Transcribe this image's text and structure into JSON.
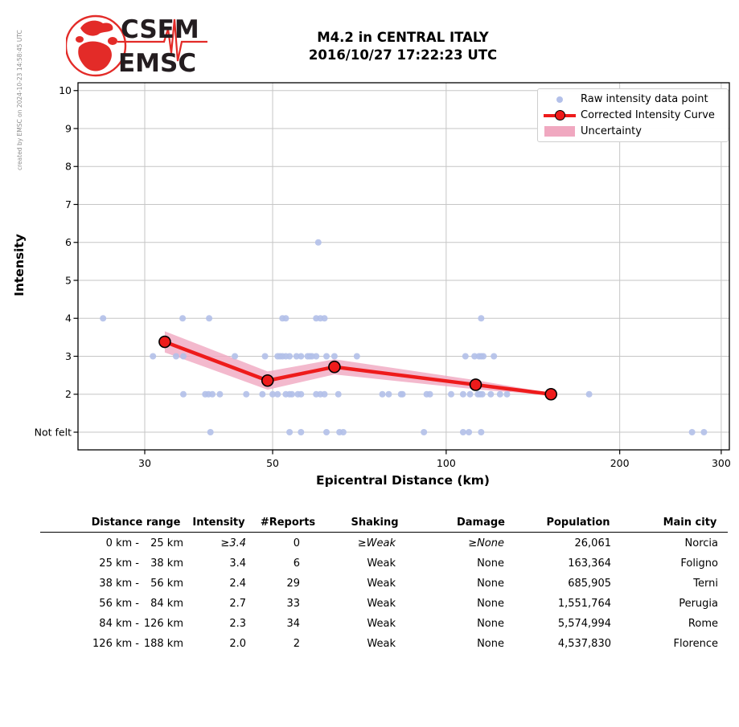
{
  "credit": "created by EMSC on 2024-10-23 14:58:45 UTC",
  "logo": {
    "line1": "CSEM",
    "line2": "EMSC"
  },
  "title": {
    "line1": "M4.2 in CENTRAL ITALY",
    "line2": "2016/10/27 17:22:23 UTC"
  },
  "chart_data": {
    "type": "scatter",
    "title": "M4.2 in CENTRAL ITALY",
    "subtitle": "2016/10/27 17:22:23 UTC",
    "xlabel": "Epicentral Distance (km)",
    "ylabel": "Intensity",
    "x_scale": "log",
    "x_ticks": [
      30,
      50,
      100,
      200,
      300
    ],
    "x_range": [
      23,
      310
    ],
    "y_tick_values": [
      1,
      2,
      3,
      4,
      5,
      6,
      7,
      8,
      9,
      10
    ],
    "y_tick_labels": [
      "Not felt",
      "2",
      "3",
      "4",
      "5",
      "6",
      "7",
      "8",
      "9",
      "10"
    ],
    "y_range": [
      0.53,
      10.21
    ],
    "grid": true,
    "legend_position": "upper right",
    "legend": [
      "Raw intensity data point",
      "Corrected Intensity Curve",
      "Uncertainty"
    ],
    "colors": {
      "raw": "#b3c0e9",
      "curve": "#ee1b1b",
      "band": "#f0a8c0",
      "grid": "#c6c6c6",
      "logo_red": "#e32b28",
      "logo_dark": "#241d20"
    },
    "raw_points": [
      [
        60,
        6
      ],
      [
        25.4,
        4
      ],
      [
        34.9,
        4
      ],
      [
        38.8,
        4
      ],
      [
        52,
        4
      ],
      [
        52.7,
        4
      ],
      [
        59.5,
        4
      ],
      [
        60.5,
        4
      ],
      [
        61.5,
        4
      ],
      [
        115,
        4
      ],
      [
        31,
        3
      ],
      [
        34,
        3
      ],
      [
        35,
        3
      ],
      [
        43,
        3
      ],
      [
        48.5,
        3
      ],
      [
        51,
        3
      ],
      [
        51.5,
        3
      ],
      [
        52,
        3
      ],
      [
        52.7,
        3
      ],
      [
        53.5,
        3
      ],
      [
        55,
        3
      ],
      [
        56,
        3
      ],
      [
        57.5,
        3
      ],
      [
        58,
        3
      ],
      [
        58.5,
        3
      ],
      [
        59.5,
        3
      ],
      [
        62,
        3
      ],
      [
        64,
        3
      ],
      [
        70,
        3
      ],
      [
        108,
        3
      ],
      [
        112,
        3
      ],
      [
        114,
        3
      ],
      [
        115,
        3
      ],
      [
        116,
        3
      ],
      [
        121,
        3
      ],
      [
        35,
        2
      ],
      [
        38.2,
        2
      ],
      [
        38.7,
        2
      ],
      [
        39.3,
        2
      ],
      [
        40.5,
        2
      ],
      [
        45,
        2
      ],
      [
        48,
        2
      ],
      [
        50,
        2
      ],
      [
        51,
        2
      ],
      [
        52.7,
        2
      ],
      [
        53.5,
        2
      ],
      [
        54,
        2
      ],
      [
        55.3,
        2
      ],
      [
        56,
        2
      ],
      [
        59.5,
        2
      ],
      [
        60.5,
        2
      ],
      [
        61.5,
        2
      ],
      [
        65,
        2
      ],
      [
        77.5,
        2
      ],
      [
        79.5,
        2
      ],
      [
        83.5,
        2
      ],
      [
        84,
        2
      ],
      [
        92.5,
        2
      ],
      [
        93.7,
        2
      ],
      [
        102,
        2
      ],
      [
        107,
        2
      ],
      [
        110,
        2
      ],
      [
        113.5,
        2
      ],
      [
        114.5,
        2
      ],
      [
        115.5,
        2
      ],
      [
        119.5,
        2
      ],
      [
        124,
        2
      ],
      [
        127.5,
        2
      ],
      [
        177,
        2
      ],
      [
        39,
        1
      ],
      [
        53.5,
        1
      ],
      [
        56,
        1
      ],
      [
        62,
        1
      ],
      [
        65.3,
        1
      ],
      [
        66.3,
        1
      ],
      [
        91.5,
        1
      ],
      [
        107,
        1
      ],
      [
        109.5,
        1
      ],
      [
        115,
        1
      ],
      [
        267,
        1
      ],
      [
        280,
        1
      ]
    ],
    "corrected_curve": {
      "points": [
        [
          32.5,
          3.38
        ],
        [
          49,
          2.36
        ],
        [
          64,
          2.72
        ],
        [
          112.5,
          2.25
        ],
        [
          152,
          2.0
        ]
      ],
      "uncertainty_half_width": [
        0.28,
        0.24,
        0.2,
        0.12,
        0.03
      ]
    }
  },
  "table": {
    "headers": [
      "Distance range",
      "Intensity",
      "#Reports",
      "Shaking",
      "Damage",
      "Population",
      "Main city"
    ],
    "rows": [
      {
        "range": [
          "0 km -",
          "25 km"
        ],
        "intensity": "≥3.4",
        "reports": "0",
        "shaking": "≥Weak",
        "damage": "≥None",
        "population": "26,061",
        "city": "Norcia",
        "estimated": true
      },
      {
        "range": [
          "25 km -",
          "38 km"
        ],
        "intensity": "3.4",
        "reports": "6",
        "shaking": "Weak",
        "damage": "None",
        "population": "163,364",
        "city": "Foligno",
        "estimated": false
      },
      {
        "range": [
          "38 km -",
          "56 km"
        ],
        "intensity": "2.4",
        "reports": "29",
        "shaking": "Weak",
        "damage": "None",
        "population": "685,905",
        "city": "Terni",
        "estimated": false
      },
      {
        "range": [
          "56 km -",
          "84 km"
        ],
        "intensity": "2.7",
        "reports": "33",
        "shaking": "Weak",
        "damage": "None",
        "population": "1,551,764",
        "city": "Perugia",
        "estimated": false
      },
      {
        "range": [
          "84 km -",
          "126 km"
        ],
        "intensity": "2.3",
        "reports": "34",
        "shaking": "Weak",
        "damage": "None",
        "population": "5,574,994",
        "city": "Rome",
        "estimated": false
      },
      {
        "range": [
          "126 km -",
          "188 km"
        ],
        "intensity": "2.0",
        "reports": "2",
        "shaking": "Weak",
        "damage": "None",
        "population": "4,537,830",
        "city": "Florence",
        "estimated": false
      }
    ]
  }
}
